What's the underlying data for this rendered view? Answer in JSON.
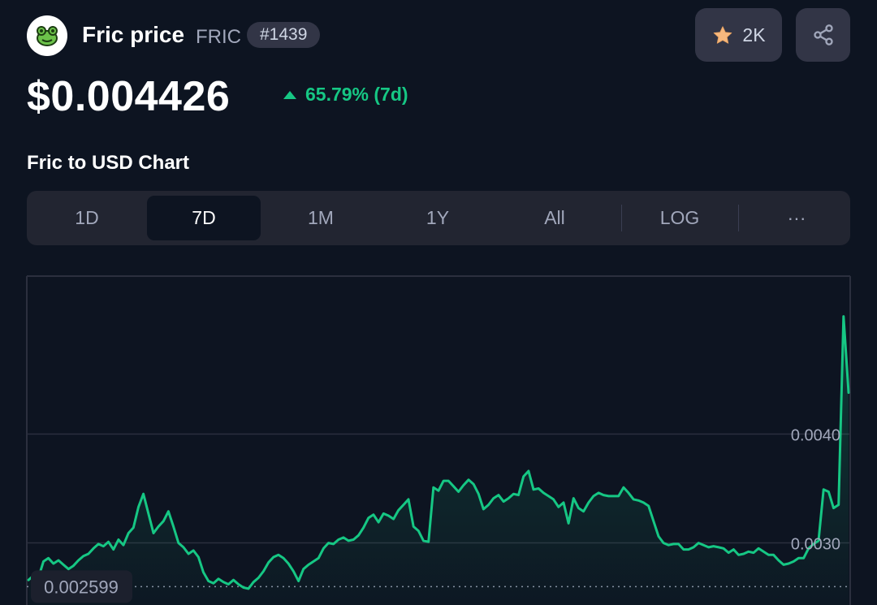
{
  "coin": {
    "name": "Fric price",
    "symbol": "FRIC",
    "rank": "#1439",
    "watchlist_count": "2K",
    "logo_icon": "frog-icon"
  },
  "price": {
    "value": "$0.004426",
    "change": "65.79% (7d)",
    "direction": "up"
  },
  "chart_heading": "Fric to USD Chart",
  "tabs": {
    "d1": "1D",
    "d7": "7D",
    "m1": "1M",
    "y1": "1Y",
    "all": "All",
    "log": "LOG",
    "more": "···",
    "active": "7D"
  },
  "colors": {
    "background": "#0d1421",
    "panel": "#323546",
    "accent_up": "#16c784",
    "muted_text": "#a1a7bb"
  },
  "icons": {
    "star": "star-icon",
    "share": "share-icon",
    "triangle": "triangle-up-icon"
  },
  "chart_data": {
    "type": "area",
    "title": "",
    "xlabel": "",
    "ylabel": "",
    "ylim": [
      0.00243,
      0.00545
    ],
    "y_ticks": [
      "0.0040",
      "0.0030"
    ],
    "y_tick_values": [
      0.004,
      0.003
    ],
    "reference_line": {
      "label": "0.002599",
      "value": 0.002599
    },
    "grid": true,
    "series": [
      {
        "values": [
          0.00266,
          0.0027,
          0.00268,
          0.00283,
          0.00286,
          0.00281,
          0.00284,
          0.0028,
          0.00276,
          0.00279,
          0.00284,
          0.00288,
          0.0029,
          0.00295,
          0.00299,
          0.00297,
          0.00301,
          0.00294,
          0.00303,
          0.00298,
          0.00309,
          0.00314,
          0.00333,
          0.00345,
          0.00327,
          0.00309,
          0.00315,
          0.0032,
          0.00329,
          0.00315,
          0.003,
          0.00296,
          0.0029,
          0.00293,
          0.00287,
          0.00273,
          0.00265,
          0.00263,
          0.00267,
          0.00264,
          0.00262,
          0.00266,
          0.00262,
          0.00259,
          0.00258,
          0.00264,
          0.00268,
          0.00274,
          0.00282,
          0.00287,
          0.00289,
          0.00286,
          0.00281,
          0.00274,
          0.00265,
          0.00276,
          0.0028,
          0.00283,
          0.00286,
          0.00295,
          0.003,
          0.00299,
          0.00303,
          0.00305,
          0.00302,
          0.00303,
          0.00307,
          0.00314,
          0.00323,
          0.00326,
          0.00319,
          0.00327,
          0.00325,
          0.00322,
          0.0033,
          0.00335,
          0.0034,
          0.00315,
          0.00311,
          0.00302,
          0.00301,
          0.00351,
          0.00348,
          0.00357,
          0.00357,
          0.00352,
          0.00347,
          0.00353,
          0.00358,
          0.00354,
          0.00345,
          0.00331,
          0.00335,
          0.00341,
          0.00344,
          0.00338,
          0.00341,
          0.00345,
          0.00344,
          0.00361,
          0.00366,
          0.00349,
          0.0035,
          0.00346,
          0.00343,
          0.0034,
          0.00333,
          0.00337,
          0.00318,
          0.00341,
          0.00332,
          0.00329,
          0.00337,
          0.00343,
          0.00346,
          0.00344,
          0.00343,
          0.00343,
          0.00343,
          0.00351,
          0.00346,
          0.0034,
          0.00339,
          0.00337,
          0.00334,
          0.0032,
          0.00306,
          0.003,
          0.00298,
          0.00299,
          0.00299,
          0.00294,
          0.00294,
          0.00296,
          0.003,
          0.00298,
          0.00296,
          0.00297,
          0.00296,
          0.00295,
          0.00291,
          0.00294,
          0.00289,
          0.0029,
          0.00292,
          0.00291,
          0.00295,
          0.00292,
          0.00289,
          0.00289,
          0.00284,
          0.0028,
          0.00281,
          0.00283,
          0.00286,
          0.00286,
          0.00295,
          0.00299,
          0.00302,
          0.00349,
          0.00347,
          0.00332,
          0.00335,
          0.00508,
          0.00438
        ]
      }
    ]
  }
}
